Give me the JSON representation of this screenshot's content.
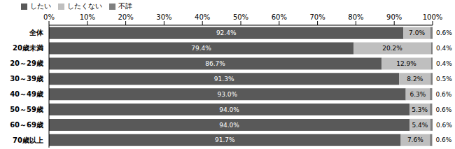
{
  "chart_data": {
    "type": "bar",
    "orientation": "horizontal",
    "stacked": true,
    "data_labels": true,
    "grid": false,
    "legend": "top-left",
    "categories": [
      "全体",
      "20歳未満",
      "20～29歳",
      "30～39歳",
      "40～49歳",
      "50～59歳",
      "60～69歳",
      "70歳以上"
    ],
    "series": [
      {
        "name": "したい",
        "color": "#595959",
        "values": [
          92.4,
          79.4,
          86.7,
          91.3,
          93.0,
          94.0,
          94.0,
          91.7
        ],
        "value_labels": [
          "92.4%",
          "79.4%",
          "86.7%",
          "91.3%",
          "93.0%",
          "94.0%",
          "94.0%",
          "91.7%"
        ]
      },
      {
        "name": "したくない",
        "color": "#bfbfbf",
        "values": [
          7.0,
          20.2,
          12.9,
          8.2,
          6.3,
          5.3,
          5.4,
          7.6
        ],
        "value_labels": [
          "7.0%",
          "20.2%",
          "12.9%",
          "8.2%",
          "6.3%",
          "5.3%",
          "5.4%",
          "7.6%"
        ]
      },
      {
        "name": "不詳",
        "color": "#7f7f7f",
        "values": [
          0.6,
          0.4,
          0.4,
          0.5,
          0.6,
          0.6,
          0.6,
          0.6
        ],
        "value_labels": [
          "0.6%",
          "0.4%",
          "0.4%",
          "0.5%",
          "0.6%",
          "0.6%",
          "0.6%",
          "0.6%"
        ]
      }
    ],
    "xlim": [
      0,
      100
    ],
    "xticks": [
      {
        "value": 0,
        "label": "0%"
      },
      {
        "value": 10,
        "label": "10%"
      },
      {
        "value": 20,
        "label": "20%"
      },
      {
        "value": 30,
        "label": "30%"
      },
      {
        "value": 40,
        "label": "40%"
      },
      {
        "value": 50,
        "label": "50%"
      },
      {
        "value": 60,
        "label": "60%"
      },
      {
        "value": 70,
        "label": "70%"
      },
      {
        "value": 80,
        "label": "80%"
      },
      {
        "value": 90,
        "label": "90%"
      },
      {
        "value": 100,
        "label": "100%"
      }
    ]
  }
}
